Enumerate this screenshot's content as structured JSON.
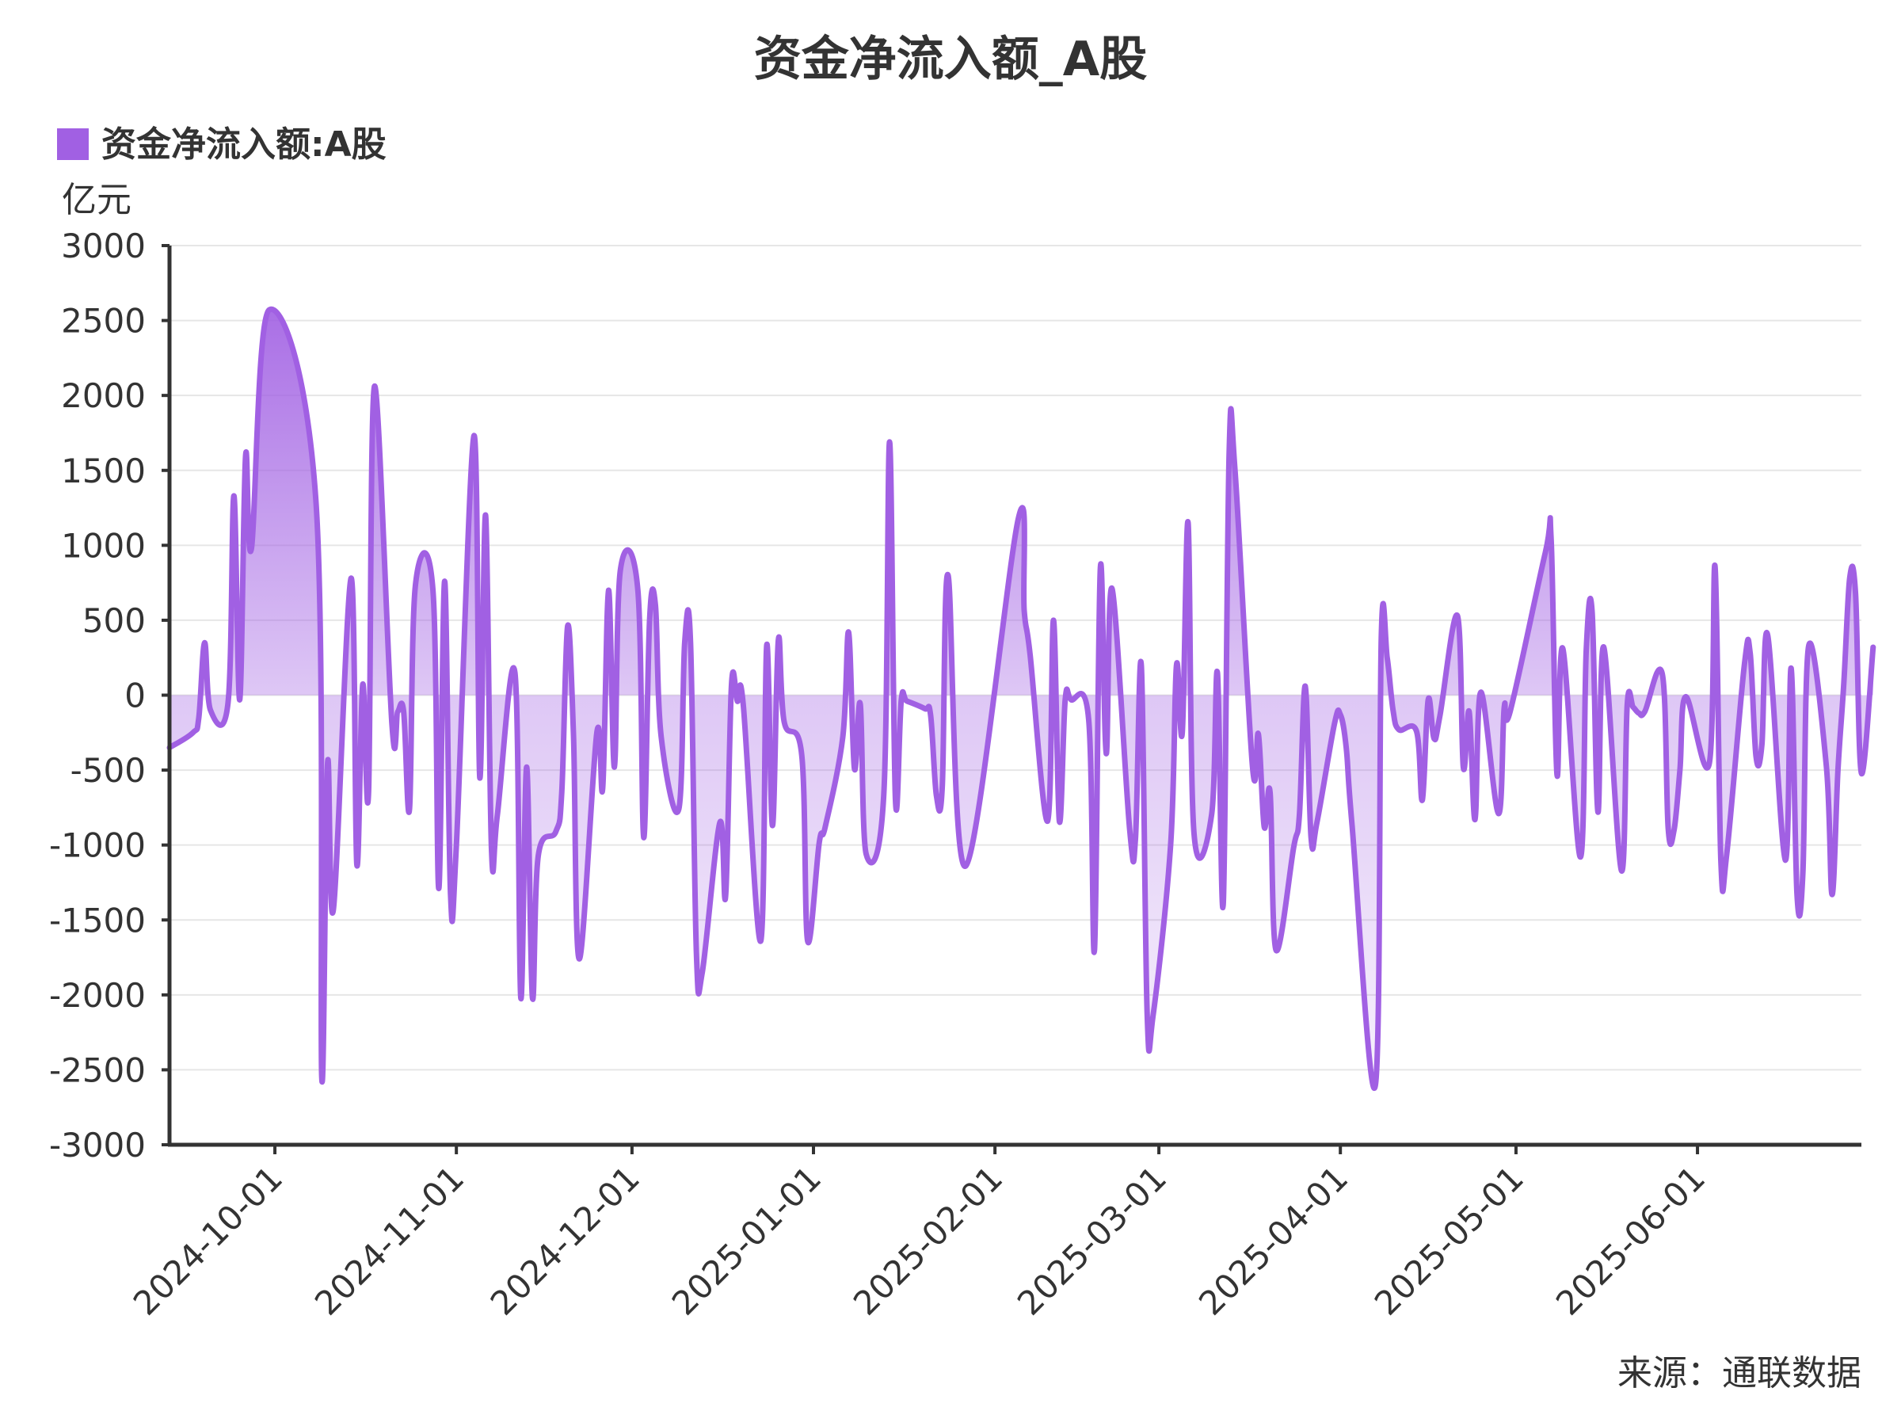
{
  "chart_data": {
    "type": "area",
    "title": "资金净流入额_A股",
    "legend": "资金净流入额:A股",
    "ylabel": "亿元",
    "source": "来源：通联数据",
    "ylim": [
      -3000,
      3000
    ],
    "yticks": [
      3000,
      2500,
      2000,
      1500,
      1000,
      500,
      0,
      -500,
      -1000,
      -1500,
      -2000,
      -2500,
      -3000
    ],
    "xlim": [
      "2024-09-13",
      "2025-06-29"
    ],
    "xticks": [
      "2024-10-01",
      "2024-11-01",
      "2024-12-01",
      "2025-01-01",
      "2025-02-01",
      "2025-03-01",
      "2025-04-01",
      "2025-05-01",
      "2025-06-01"
    ],
    "grid": true,
    "legend_position": "top-left",
    "color": "#a160e3",
    "series": [
      {
        "name": "资金净流入额:A股",
        "points": [
          [
            "2024-09-13",
            -350
          ],
          [
            "2024-09-17",
            -250
          ],
          [
            "2024-09-18",
            -150
          ],
          [
            "2024-09-19",
            350
          ],
          [
            "2024-09-20",
            -100
          ],
          [
            "2024-09-23",
            -50
          ],
          [
            "2024-09-24",
            1330
          ],
          [
            "2024-09-25",
            -30
          ],
          [
            "2024-09-26",
            1600
          ],
          [
            "2024-09-27",
            980
          ],
          [
            "2024-09-30",
            2570
          ],
          [
            "2024-10-08",
            1300
          ],
          [
            "2024-10-09",
            -2550
          ],
          [
            "2024-10-10",
            -450
          ],
          [
            "2024-10-11",
            -1430
          ],
          [
            "2024-10-14",
            780
          ],
          [
            "2024-10-15",
            -1130
          ],
          [
            "2024-10-16",
            70
          ],
          [
            "2024-10-17",
            -650
          ],
          [
            "2024-10-18",
            2060
          ],
          [
            "2024-10-21",
            -200
          ],
          [
            "2024-10-22",
            -110
          ],
          [
            "2024-10-23",
            -110
          ],
          [
            "2024-10-24",
            -760
          ],
          [
            "2024-10-25",
            730
          ],
          [
            "2024-10-28",
            700
          ],
          [
            "2024-10-29",
            -1290
          ],
          [
            "2024-10-30",
            760
          ],
          [
            "2024-10-31",
            -1330
          ],
          [
            "2024-11-01",
            -1000
          ],
          [
            "2024-11-04",
            1730
          ],
          [
            "2024-11-05",
            -550
          ],
          [
            "2024-11-06",
            1200
          ],
          [
            "2024-11-07",
            -1030
          ],
          [
            "2024-11-08",
            -800
          ],
          [
            "2024-11-11",
            150
          ],
          [
            "2024-11-12",
            -2020
          ],
          [
            "2024-11-13",
            -480
          ],
          [
            "2024-11-14",
            -2020
          ],
          [
            "2024-11-15",
            -1070
          ],
          [
            "2024-11-18",
            -910
          ],
          [
            "2024-11-19",
            -650
          ],
          [
            "2024-11-20",
            460
          ],
          [
            "2024-11-21",
            -260
          ],
          [
            "2024-11-22",
            -1760
          ],
          [
            "2024-11-25",
            -250
          ],
          [
            "2024-11-26",
            -620
          ],
          [
            "2024-11-27",
            700
          ],
          [
            "2024-11-28",
            -480
          ],
          [
            "2024-11-29",
            830
          ],
          [
            "2024-12-02",
            700
          ],
          [
            "2024-12-03",
            -950
          ],
          [
            "2024-12-04",
            500
          ],
          [
            "2024-12-05",
            600
          ],
          [
            "2024-12-06",
            -280
          ],
          [
            "2024-12-09",
            -760
          ],
          [
            "2024-12-10",
            350
          ],
          [
            "2024-12-11",
            350
          ],
          [
            "2024-12-12",
            -1720
          ],
          [
            "2024-12-13",
            -1850
          ],
          [
            "2024-12-16",
            -850
          ],
          [
            "2024-12-17",
            -1340
          ],
          [
            "2024-12-18",
            70
          ],
          [
            "2024-12-19",
            -40
          ],
          [
            "2024-12-20",
            -60
          ],
          [
            "2024-12-23",
            -1640
          ],
          [
            "2024-12-24",
            330
          ],
          [
            "2024-12-25",
            -870
          ],
          [
            "2024-12-26",
            370
          ],
          [
            "2024-12-27",
            -180
          ],
          [
            "2024-12-30",
            -400
          ],
          [
            "2024-12-31",
            -1640
          ],
          [
            "2025-01-02",
            -980
          ],
          [
            "2025-01-03",
            -880
          ],
          [
            "2025-01-06",
            -280
          ],
          [
            "2025-01-07",
            420
          ],
          [
            "2025-01-08",
            -490
          ],
          [
            "2025-01-09",
            -60
          ],
          [
            "2025-01-10",
            -1060
          ],
          [
            "2025-01-13",
            -670
          ],
          [
            "2025-01-14",
            1690
          ],
          [
            "2025-01-15",
            -700
          ],
          [
            "2025-01-16",
            -30
          ],
          [
            "2025-01-17",
            -40
          ],
          [
            "2025-01-20",
            -90
          ],
          [
            "2025-01-21",
            -130
          ],
          [
            "2025-01-22",
            -670
          ],
          [
            "2025-01-23",
            -610
          ],
          [
            "2025-01-24",
            800
          ],
          [
            "2025-01-27",
            -1140
          ],
          [
            "2025-02-05",
            1180
          ],
          [
            "2025-02-06",
            560
          ],
          [
            "2025-02-07",
            270
          ],
          [
            "2025-02-10",
            -840
          ],
          [
            "2025-02-11",
            500
          ],
          [
            "2025-02-12",
            -840
          ],
          [
            "2025-02-13",
            -30
          ],
          [
            "2025-02-14",
            -30
          ],
          [
            "2025-02-17",
            -160
          ],
          [
            "2025-02-18",
            -1700
          ],
          [
            "2025-02-19",
            850
          ],
          [
            "2025-02-20",
            -390
          ],
          [
            "2025-02-21",
            710
          ],
          [
            "2025-02-24",
            -890
          ],
          [
            "2025-02-25",
            -960
          ],
          [
            "2025-02-26",
            200
          ],
          [
            "2025-02-27",
            -2130
          ],
          [
            "2025-02-28",
            -2140
          ],
          [
            "2025-03-03",
            -1000
          ],
          [
            "2025-03-04",
            200
          ],
          [
            "2025-03-05",
            -250
          ],
          [
            "2025-03-06",
            1150
          ],
          [
            "2025-03-07",
            -920
          ],
          [
            "2025-03-10",
            -800
          ],
          [
            "2025-03-11",
            150
          ],
          [
            "2025-03-12",
            -1390
          ],
          [
            "2025-03-13",
            1620
          ],
          [
            "2025-03-14",
            1500
          ],
          [
            "2025-03-17",
            -480
          ],
          [
            "2025-03-18",
            -260
          ],
          [
            "2025-03-19",
            -880
          ],
          [
            "2025-03-20",
            -650
          ],
          [
            "2025-03-21",
            -1700
          ],
          [
            "2025-03-24",
            -1020
          ],
          [
            "2025-03-25",
            -800
          ],
          [
            "2025-03-26",
            60
          ],
          [
            "2025-03-27",
            -950
          ],
          [
            "2025-03-28",
            -850
          ],
          [
            "2025-03-31",
            -190
          ],
          [
            "2025-04-01",
            -130
          ],
          [
            "2025-04-02",
            -350
          ],
          [
            "2025-04-03",
            -870
          ],
          [
            "2025-04-07",
            -2600
          ],
          [
            "2025-04-08",
            400
          ],
          [
            "2025-04-09",
            250
          ],
          [
            "2025-04-10",
            -100
          ],
          [
            "2025-04-11",
            -230
          ],
          [
            "2025-04-14",
            -240
          ],
          [
            "2025-04-15",
            -700
          ],
          [
            "2025-04-16",
            -30
          ],
          [
            "2025-04-17",
            -290
          ],
          [
            "2025-04-18",
            -140
          ],
          [
            "2025-04-21",
            530
          ],
          [
            "2025-04-22",
            -480
          ],
          [
            "2025-04-23",
            -110
          ],
          [
            "2025-04-24",
            -830
          ],
          [
            "2025-04-25",
            20
          ],
          [
            "2025-04-28",
            -790
          ],
          [
            "2025-04-29",
            -80
          ],
          [
            "2025-04-30",
            -110
          ],
          [
            "2025-05-06",
            950
          ],
          [
            "2025-05-07",
            1040
          ],
          [
            "2025-05-08",
            -530
          ],
          [
            "2025-05-09",
            310
          ],
          [
            "2025-05-12",
            -1080
          ],
          [
            "2025-05-13",
            300
          ],
          [
            "2025-05-14",
            560
          ],
          [
            "2025-05-15",
            -780
          ],
          [
            "2025-05-16",
            320
          ],
          [
            "2025-05-19",
            -1170
          ],
          [
            "2025-05-20",
            -60
          ],
          [
            "2025-05-21",
            -80
          ],
          [
            "2025-05-22",
            -120
          ],
          [
            "2025-05-23",
            -110
          ],
          [
            "2025-05-26",
            140
          ],
          [
            "2025-05-27",
            -890
          ],
          [
            "2025-05-28",
            -900
          ],
          [
            "2025-05-29",
            -500
          ],
          [
            "2025-05-30",
            -10
          ],
          [
            "2025-06-03",
            -460
          ],
          [
            "2025-06-04",
            860
          ],
          [
            "2025-06-05",
            -1110
          ],
          [
            "2025-06-06",
            -1060
          ],
          [
            "2025-06-09",
            200
          ],
          [
            "2025-06-10",
            280
          ],
          [
            "2025-06-11",
            -410
          ],
          [
            "2025-06-12",
            -330
          ],
          [
            "2025-06-13",
            400
          ],
          [
            "2025-06-16",
            -1100
          ],
          [
            "2025-06-17",
            180
          ],
          [
            "2025-06-18",
            -1330
          ],
          [
            "2025-06-19",
            -1190
          ],
          [
            "2025-06-20",
            330
          ],
          [
            "2025-06-23",
            -470
          ],
          [
            "2025-06-24",
            -1330
          ],
          [
            "2025-06-25",
            -500
          ],
          [
            "2025-06-26",
            80
          ],
          [
            "2025-06-27",
            780
          ],
          [
            "2025-06-28",
            680
          ],
          [
            "2025-06-29",
            -520
          ],
          [
            "2025-07-01",
            320
          ]
        ]
      }
    ]
  }
}
